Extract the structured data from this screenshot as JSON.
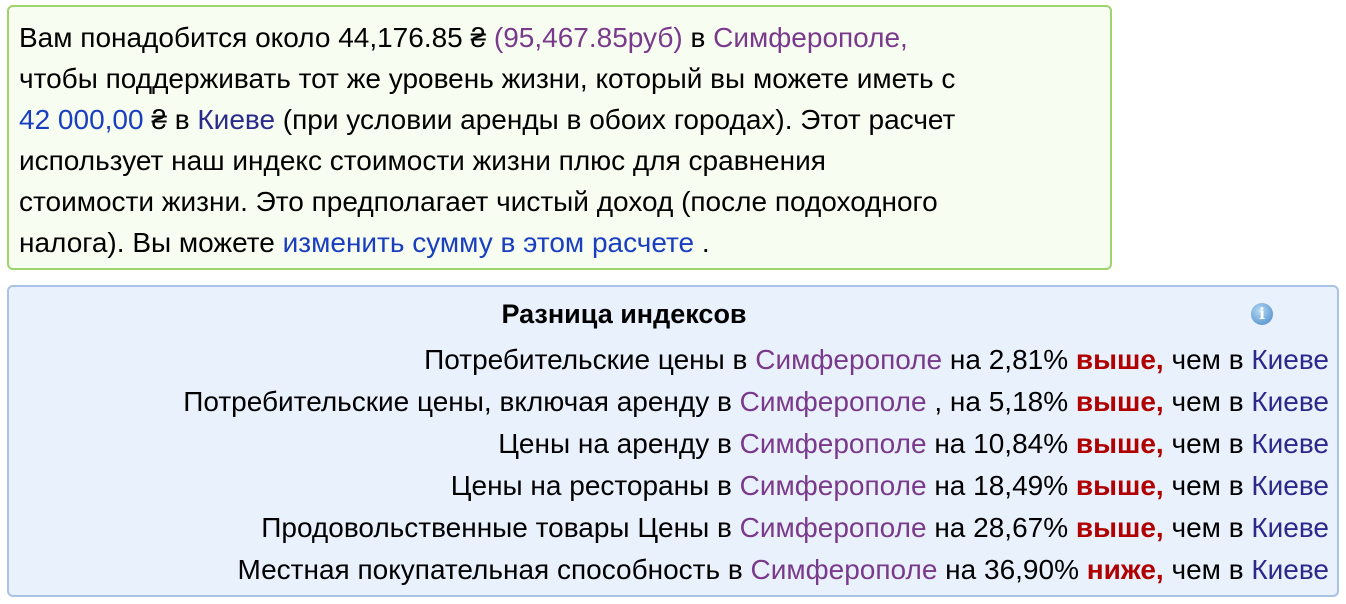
{
  "summary": {
    "p1": "Вам понадобится около ",
    "amount": "44,176.85 ₴",
    "amount_rub": "(95,467.85руб)",
    "p2": " в ",
    "city_target": "Симферополе,",
    "p3": "чтобы поддерживать тот же уровень жизни, который вы можете иметь с",
    "base_amount": "42 000,00",
    "currency": " ₴ в ",
    "city_base": "Киеве",
    "p4": " (при условии аренды в обоих городах). Этот расчет",
    "p5": "использует наш индекс стоимости жизни плюс для сравнения",
    "p6": "стоимости жизни. Это предполагает чистый доход (после подоходного",
    "p7": "налога). Вы можете ",
    "link": "изменить сумму в этом расчете",
    "p8": " ."
  },
  "indices": {
    "title": "Разница индексов",
    "info_icon": "info-icon",
    "rows": [
      {
        "prefix": "Потребительские цены в ",
        "city": "Симферополе",
        "mid": " на 2,81% ",
        "dir": "выше,",
        "suffix": " чем в ",
        "base": "Киеве"
      },
      {
        "prefix": "Потребительские цены, включая аренду в ",
        "city": "Симферополе",
        "mid": " , на 5,18% ",
        "dir": "выше,",
        "suffix": " чем в ",
        "base": "Киеве"
      },
      {
        "prefix": "Цены на аренду в ",
        "city": "Симферополе",
        "mid": " на 10,84% ",
        "dir": "выше,",
        "suffix": " чем в ",
        "base": "Киеве"
      },
      {
        "prefix": "Цены на рестораны в ",
        "city": "Симферополе",
        "mid": " на 18,49% ",
        "dir": "выше,",
        "suffix": " чем в ",
        "base": "Киеве"
      },
      {
        "prefix": "Продовольственные товары Цены в ",
        "city": "Симферополе",
        "mid": " на 28,67% ",
        "dir": "выше,",
        "suffix": " чем в ",
        "base": "Киеве"
      },
      {
        "prefix": "Местная покупательная способность в ",
        "city": "Симферополе",
        "mid": " на 36,90% ",
        "dir": "ниже,",
        "suffix": " чем в ",
        "base": "Киеве"
      }
    ]
  },
  "colors": {
    "target_city": "#7a3a8c",
    "base_city": "#2b2a8c",
    "link": "#1a3ec0",
    "direction": "#b00000"
  }
}
